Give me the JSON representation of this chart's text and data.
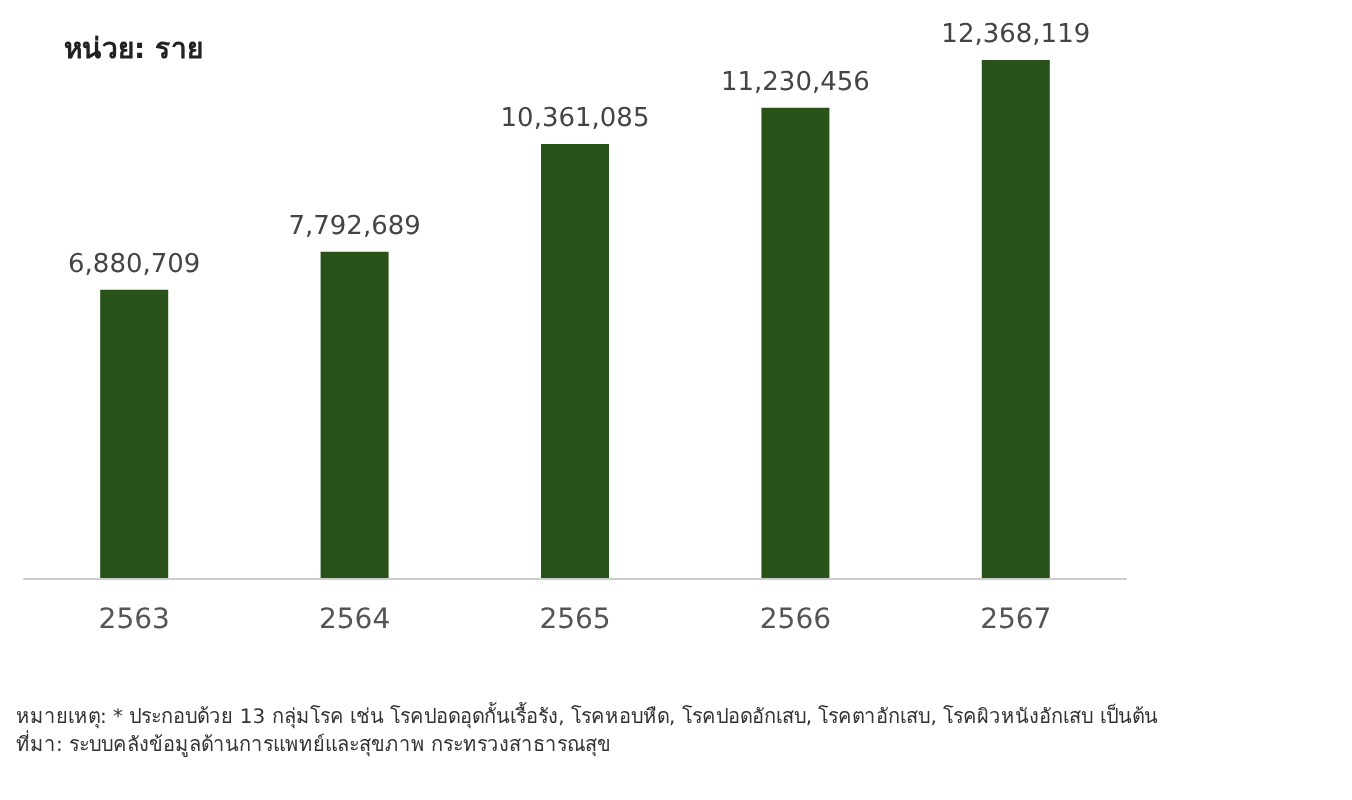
{
  "chart_data": {
    "type": "bar",
    "ylabel": "หน่วย: ราย",
    "categories": [
      "2563",
      "2564",
      "2565",
      "2566",
      "2567"
    ],
    "values": [
      6880709,
      7792689,
      10361085,
      11230456,
      12368119
    ],
    "value_labels": [
      "6,880,709",
      "7,792,689",
      "10,361,085",
      "11,230,456",
      "12,368,119"
    ],
    "color": "#29511a",
    "annotations": [
      "หมายเหตุ: * ประกอบด้วย 13 กลุ่มโรค เช่น โรคปอดอุดกั้นเรื้อรัง, โรคหอบหืด, โรคปอดอักเสบ, โรคตาอักเสบ, โรคผิวหนังอักเสบ เป็นต้น",
      "ที่มา: ระบบคลังข้อมูลด้านการแพทย์และสุขภาพ กระทรวงสาธารณสุข"
    ]
  }
}
